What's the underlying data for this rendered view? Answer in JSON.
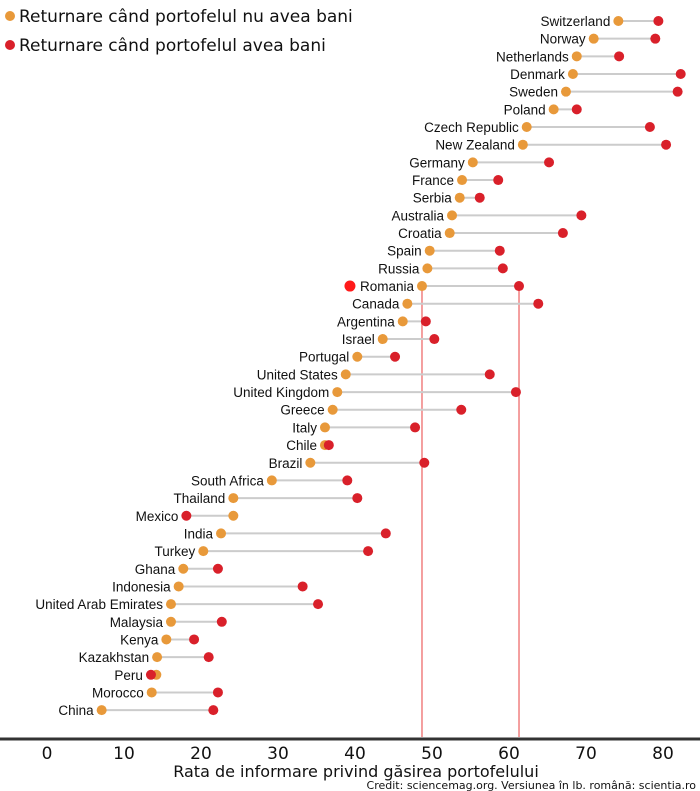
{
  "colors": {
    "without_money": "#e8993a",
    "with_money": "#d9202a",
    "highlight": "#ff1a1a",
    "connector": "#cccccc",
    "refline": "#f08080"
  },
  "chart_data": {
    "type": "dumbbell",
    "xlabel": "Rata de informare privind găsirea portofelului",
    "credit": "Credit: sciencemag.org. Versiunea în lb. română: scientia.ro",
    "xlim": [
      0,
      82
    ],
    "xticks": [
      0,
      10,
      20,
      30,
      40,
      50,
      60,
      70,
      80
    ],
    "legend": {
      "placement": "top-left",
      "entries": [
        "Returnare când portofelul nu avea bani",
        "Returnare când portofelul avea bani"
      ]
    },
    "highlight": "Romania",
    "reference_lines": [
      48.7,
      61.3
    ],
    "categories": [
      "Switzerland",
      "Norway",
      "Netherlands",
      "Denmark",
      "Sweden",
      "Poland",
      "Czech Republic",
      "New Zealand",
      "Germany",
      "France",
      "Serbia",
      "Australia",
      "Croatia",
      "Spain",
      "Russia",
      "Romania",
      "Canada",
      "Argentina",
      "Israel",
      "Portugal",
      "United States",
      "United Kingdom",
      "Greece",
      "Italy",
      "Chile",
      "Brazil",
      "South Africa",
      "Thailand",
      "Mexico",
      "India",
      "Turkey",
      "Ghana",
      "Indonesia",
      "United Arab Emirates",
      "Malaysia",
      "Kenya",
      "Kazakhstan",
      "Peru",
      "Morocco",
      "China"
    ],
    "series": [
      {
        "name": "Returnare când portofelul nu avea bani",
        "values": [
          74.2,
          71.0,
          68.8,
          68.3,
          67.4,
          65.8,
          62.3,
          61.8,
          55.3,
          53.9,
          53.6,
          52.6,
          52.3,
          49.7,
          49.4,
          48.7,
          46.8,
          46.2,
          43.6,
          40.3,
          38.8,
          37.7,
          37.1,
          36.1,
          36.1,
          34.2,
          29.2,
          24.2,
          24.2,
          22.6,
          20.3,
          17.7,
          17.1,
          16.1,
          16.1,
          15.5,
          14.3,
          14.2,
          13.6,
          7.1
        ]
      },
      {
        "name": "Returnare când portofelul avea bani",
        "values": [
          79.4,
          79.0,
          74.3,
          82.3,
          81.9,
          68.8,
          78.3,
          80.4,
          65.2,
          58.6,
          56.2,
          69.4,
          67.0,
          58.8,
          59.2,
          61.3,
          63.8,
          49.2,
          50.3,
          45.2,
          57.5,
          60.9,
          53.8,
          47.8,
          36.6,
          49.0,
          39.0,
          40.3,
          18.1,
          44.0,
          41.7,
          22.2,
          33.2,
          35.2,
          22.7,
          19.1,
          21.0,
          13.5,
          22.2,
          21.6
        ]
      }
    ]
  }
}
